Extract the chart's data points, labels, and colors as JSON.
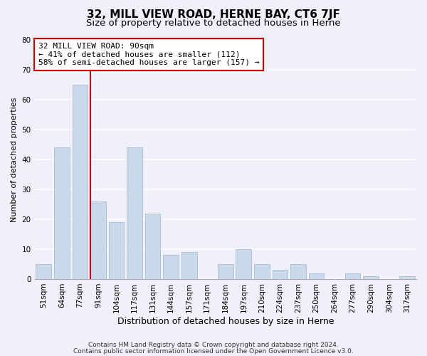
{
  "title": "32, MILL VIEW ROAD, HERNE BAY, CT6 7JF",
  "subtitle": "Size of property relative to detached houses in Herne",
  "xlabel": "Distribution of detached houses by size in Herne",
  "ylabel": "Number of detached properties",
  "bar_labels": [
    "51sqm",
    "64sqm",
    "77sqm",
    "91sqm",
    "104sqm",
    "117sqm",
    "131sqm",
    "144sqm",
    "157sqm",
    "171sqm",
    "184sqm",
    "197sqm",
    "210sqm",
    "224sqm",
    "237sqm",
    "250sqm",
    "264sqm",
    "277sqm",
    "290sqm",
    "304sqm",
    "317sqm"
  ],
  "bar_values": [
    5,
    44,
    65,
    26,
    19,
    44,
    22,
    8,
    9,
    0,
    5,
    10,
    5,
    3,
    5,
    2,
    0,
    2,
    1,
    0,
    1
  ],
  "bar_color": "#c9d9e9",
  "bar_edge_color": "#a8c0d4",
  "marker_line_label": "32 MILL VIEW ROAD: 90sqm",
  "annotation_line1": "← 41% of detached houses are smaller (112)",
  "annotation_line2": "58% of semi-detached houses are larger (157) →",
  "ylim": [
    0,
    80
  ],
  "yticks": [
    0,
    10,
    20,
    30,
    40,
    50,
    60,
    70,
    80
  ],
  "box_color": "#ffffff",
  "box_edge_color": "#cc0000",
  "marker_line_color": "#cc0000",
  "footer1": "Contains HM Land Registry data © Crown copyright and database right 2024.",
  "footer2": "Contains public sector information licensed under the Open Government Licence v3.0.",
  "background_color": "#f0f0fa",
  "grid_color": "#ffffff",
  "title_fontsize": 11,
  "subtitle_fontsize": 9.5,
  "xlabel_fontsize": 9,
  "ylabel_fontsize": 8,
  "tick_fontsize": 7.5,
  "annotation_fontsize": 8,
  "footer_fontsize": 6.5
}
